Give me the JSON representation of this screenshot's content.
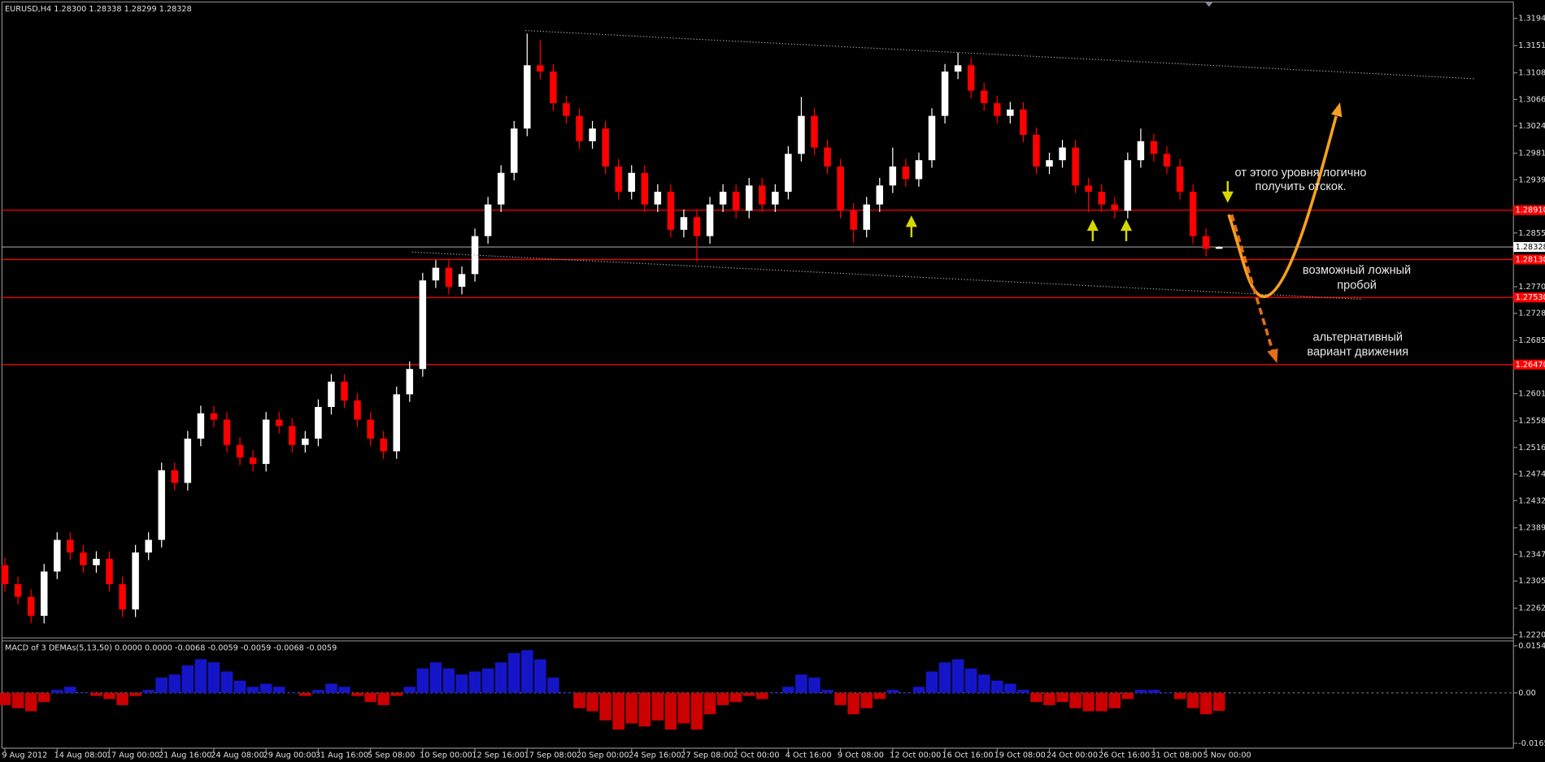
{
  "chart_data": [
    {
      "type": "candlestick",
      "title": "EURUSD,H4  1.28300 1.28338 1.28299 1.28328",
      "up_color": "#ffffff",
      "down_color": "#ff0000",
      "categories": [
        "9 Aug 2012",
        null,
        null,
        null,
        "14 Aug 08:00",
        null,
        null,
        null,
        "17 Aug 00:00",
        null,
        null,
        null,
        "21 Aug 16:00",
        null,
        null,
        null,
        "24 Aug 08:00",
        null,
        null,
        null,
        "29 Aug 00:00",
        null,
        null,
        null,
        "31 Aug 16:00",
        null,
        null,
        null,
        "5 Sep 08:00",
        null,
        null,
        null,
        "10 Sep 00:00",
        null,
        null,
        null,
        "12 Sep 16:00",
        null,
        null,
        null,
        "17 Sep 08:00",
        null,
        null,
        null,
        "20 Sep 00:00",
        null,
        null,
        null,
        "24 Sep 16:00",
        null,
        null,
        null,
        "27 Sep 08:00",
        null,
        null,
        null,
        "2 Oct 00:00",
        null,
        null,
        null,
        "4 Oct 16:00",
        null,
        null,
        null,
        "9 Oct 08:00",
        null,
        null,
        null,
        "12 Oct 00:00",
        null,
        null,
        null,
        "16 Oct 16:00",
        null,
        null,
        null,
        "19 Oct 08:00",
        null,
        null,
        null,
        "24 Oct 00:00",
        null,
        null,
        null,
        "26 Oct 16:00",
        null,
        null,
        null,
        "31 Oct 08:00",
        null,
        null,
        null,
        "5 Nov 00:00",
        null
      ],
      "open": [
        1.233,
        1.23,
        1.228,
        1.225,
        1.232,
        1.237,
        1.235,
        1.233,
        1.234,
        1.23,
        1.226,
        1.235,
        1.237,
        1.248,
        1.246,
        1.253,
        1.257,
        1.256,
        1.252,
        1.25,
        1.249,
        1.256,
        1.255,
        1.252,
        1.253,
        1.258,
        1.262,
        1.259,
        1.256,
        1.253,
        1.251,
        1.26,
        1.264,
        1.278,
        1.28,
        1.277,
        1.279,
        1.285,
        1.29,
        1.295,
        1.302,
        1.312,
        1.311,
        1.306,
        1.304,
        1.3,
        1.302,
        1.296,
        1.292,
        1.295,
        1.29,
        1.292,
        1.286,
        1.288,
        1.285,
        1.29,
        1.292,
        1.289,
        1.293,
        1.29,
        1.292,
        1.298,
        1.304,
        1.299,
        1.296,
        1.289,
        1.286,
        1.29,
        1.293,
        1.296,
        1.294,
        1.297,
        1.304,
        1.311,
        1.312,
        1.308,
        1.306,
        1.304,
        1.305,
        1.301,
        1.296,
        1.297,
        1.299,
        1.293,
        1.292,
        1.29,
        1.289,
        1.297,
        1.3,
        1.298,
        1.296,
        1.292,
        1.285,
        1.283
      ],
      "high": [
        1.2342,
        1.2312,
        1.2292,
        1.2332,
        1.2382,
        1.2382,
        1.2362,
        1.2352,
        1.2352,
        1.2312,
        1.2362,
        1.2382,
        1.2492,
        1.2492,
        1.2542,
        1.2582,
        1.2582,
        1.2572,
        1.2532,
        1.2512,
        1.2572,
        1.2572,
        1.2562,
        1.2542,
        1.2592,
        1.2632,
        1.2632,
        1.2602,
        1.2572,
        1.2542,
        1.2612,
        1.2652,
        1.2792,
        1.2812,
        1.2812,
        1.2802,
        1.2862,
        1.2912,
        1.2962,
        1.3032,
        1.317,
        1.316,
        1.3122,
        1.3072,
        1.3052,
        1.3032,
        1.3032,
        1.2972,
        1.2962,
        1.2962,
        1.2932,
        1.2932,
        1.2892,
        1.2892,
        1.2912,
        1.2932,
        1.2932,
        1.2942,
        1.2942,
        1.2932,
        1.2992,
        1.307,
        1.3052,
        1.3002,
        1.2972,
        1.2902,
        1.2912,
        1.2942,
        1.299,
        1.2972,
        1.2982,
        1.3052,
        1.3122,
        1.314,
        1.3132,
        1.3092,
        1.3072,
        1.3062,
        1.3062,
        1.3022,
        1.2982,
        1.3002,
        1.3002,
        1.2942,
        1.2932,
        1.2912,
        1.2982,
        1.302,
        1.3012,
        1.2992,
        1.2972,
        1.2932,
        1.2862,
        1.28338
      ],
      "low": [
        1.2288,
        1.2268,
        1.2238,
        1.2238,
        1.2308,
        1.2338,
        1.2318,
        1.2318,
        1.2288,
        1.2248,
        1.2248,
        1.2338,
        1.2358,
        1.2448,
        1.2448,
        1.2518,
        1.2548,
        1.2508,
        1.2488,
        1.2478,
        1.2478,
        1.2538,
        1.2508,
        1.2508,
        1.2518,
        1.2568,
        1.2578,
        1.2548,
        1.2518,
        1.2498,
        1.2498,
        1.2588,
        1.2628,
        1.2768,
        1.2758,
        1.2758,
        1.2778,
        1.2838,
        1.2888,
        1.2938,
        1.3008,
        1.3098,
        1.3048,
        1.3028,
        1.2988,
        1.2988,
        1.2948,
        1.2908,
        1.2908,
        1.2888,
        1.2888,
        1.2848,
        1.2848,
        1.281,
        1.2838,
        1.2888,
        1.2878,
        1.2878,
        1.2888,
        1.2888,
        1.2908,
        1.2968,
        1.2978,
        1.2948,
        1.2878,
        1.284,
        1.2848,
        1.2888,
        1.2918,
        1.2928,
        1.2928,
        1.2958,
        1.3028,
        1.3098,
        1.3068,
        1.3048,
        1.3028,
        1.3028,
        1.2998,
        1.2948,
        1.2948,
        1.2958,
        1.2918,
        1.2888,
        1.2888,
        1.2878,
        1.2878,
        1.2958,
        1.2968,
        1.2948,
        1.2908,
        1.2838,
        1.2818,
        1.28299
      ],
      "close": [
        1.23,
        1.228,
        1.225,
        1.232,
        1.237,
        1.235,
        1.233,
        1.234,
        1.23,
        1.226,
        1.235,
        1.237,
        1.248,
        1.246,
        1.253,
        1.257,
        1.256,
        1.252,
        1.25,
        1.249,
        1.256,
        1.255,
        1.252,
        1.253,
        1.258,
        1.262,
        1.259,
        1.256,
        1.253,
        1.251,
        1.26,
        1.264,
        1.278,
        1.28,
        1.277,
        1.279,
        1.285,
        1.29,
        1.295,
        1.302,
        1.312,
        1.311,
        1.306,
        1.304,
        1.3,
        1.302,
        1.296,
        1.292,
        1.295,
        1.29,
        1.292,
        1.286,
        1.288,
        1.285,
        1.29,
        1.292,
        1.289,
        1.293,
        1.29,
        1.292,
        1.298,
        1.304,
        1.299,
        1.296,
        1.289,
        1.286,
        1.29,
        1.293,
        1.296,
        1.294,
        1.297,
        1.304,
        1.311,
        1.312,
        1.308,
        1.306,
        1.304,
        1.305,
        1.301,
        1.296,
        1.297,
        1.299,
        1.293,
        1.292,
        1.29,
        1.289,
        1.297,
        1.3,
        1.298,
        1.296,
        1.292,
        1.285,
        1.283,
        1.28328
      ],
      "ylim": [
        1.2215,
        1.322
      ],
      "yticks": [
        {
          "value": 1.3194,
          "label": "1.31940"
        },
        {
          "value": 1.3151,
          "label": "1.31510"
        },
        {
          "value": 1.3108,
          "label": "1.31080"
        },
        {
          "value": 1.3066,
          "label": "1.30660"
        },
        {
          "value": 1.3024,
          "label": "1.30240"
        },
        {
          "value": 1.2981,
          "label": "1.29810"
        },
        {
          "value": 1.2939,
          "label": "1.29390"
        },
        {
          "value": 1.2855,
          "label": "1.28550"
        },
        {
          "value": 1.277,
          "label": "1.27700"
        },
        {
          "value": 1.2728,
          "label": "1.27280"
        },
        {
          "value": 1.2685,
          "label": "1.26850"
        },
        {
          "value": 1.2601,
          "label": "1.26010"
        },
        {
          "value": 1.2558,
          "label": "1.25580"
        },
        {
          "value": 1.2516,
          "label": "1.25160"
        },
        {
          "value": 1.2474,
          "label": "1.24740"
        },
        {
          "value": 1.2432,
          "label": "1.24320"
        },
        {
          "value": 1.2389,
          "label": "1.23890"
        },
        {
          "value": 1.2347,
          "label": "1.23470"
        },
        {
          "value": 1.2305,
          "label": "1.23050"
        },
        {
          "value": 1.2262,
          "label": "1.22620"
        },
        {
          "value": 1.222,
          "label": "1.22200"
        }
      ],
      "level_color": "#ff0000",
      "levels": [
        {
          "value": 1.2891,
          "label": "1.28910"
        },
        {
          "value": 1.2813,
          "label": "1.28130"
        },
        {
          "value": 1.2753,
          "label": "1.27530"
        },
        {
          "value": 1.2647,
          "label": "1.26470"
        }
      ],
      "price_line": {
        "value": 1.28328,
        "label": "1.28328"
      },
      "annotations": [
        {
          "lines": [
            "от этого уровня логично",
            "получить отскок."
          ]
        },
        {
          "lines": [
            "возможный ложный",
            "пробой"
          ]
        },
        {
          "lines": [
            "альтернативный",
            "вариант движения"
          ]
        }
      ]
    },
    {
      "type": "bar",
      "title": "MACD of 3 DEMAs(5,13,50) 0.0000 0.0000 -0.0068 -0.0059 -0.0059 -0.0068 -0.0059",
      "up_color": "#1515c8",
      "down_color": "#cc0000",
      "values": [
        -0.004,
        -0.005,
        -0.006,
        -0.003,
        0.001,
        0.002,
        0.0,
        -0.001,
        -0.002,
        -0.004,
        -0.001,
        0.001,
        0.005,
        0.006,
        0.009,
        0.011,
        0.01,
        0.007,
        0.004,
        0.002,
        0.003,
        0.002,
        0.0,
        -0.001,
        0.001,
        0.003,
        0.002,
        -0.001,
        -0.003,
        -0.004,
        -0.001,
        0.002,
        0.008,
        0.01,
        0.008,
        0.006,
        0.007,
        0.008,
        0.01,
        0.013,
        0.014,
        0.011,
        0.005,
        0.0,
        -0.005,
        -0.006,
        -0.009,
        -0.012,
        -0.01,
        -0.011,
        -0.009,
        -0.012,
        -0.01,
        -0.012,
        -0.007,
        -0.004,
        -0.003,
        -0.001,
        -0.002,
        0.0,
        0.002,
        0.006,
        0.005,
        0.001,
        -0.004,
        -0.007,
        -0.005,
        -0.002,
        0.001,
        0.0,
        0.002,
        0.007,
        0.01,
        0.011,
        0.008,
        0.006,
        0.004,
        0.003,
        0.001,
        -0.003,
        -0.004,
        -0.003,
        -0.005,
        -0.006,
        -0.006,
        -0.005,
        -0.002,
        0.001,
        0.001,
        0.0,
        -0.002,
        -0.005,
        -0.007,
        -0.0059
      ],
      "ylim": [
        -0.0165,
        0.0154
      ],
      "yticks": [
        0.0154,
        {
          "value": 0,
          "label": "0.00"
        },
        -0.0165
      ]
    }
  ]
}
